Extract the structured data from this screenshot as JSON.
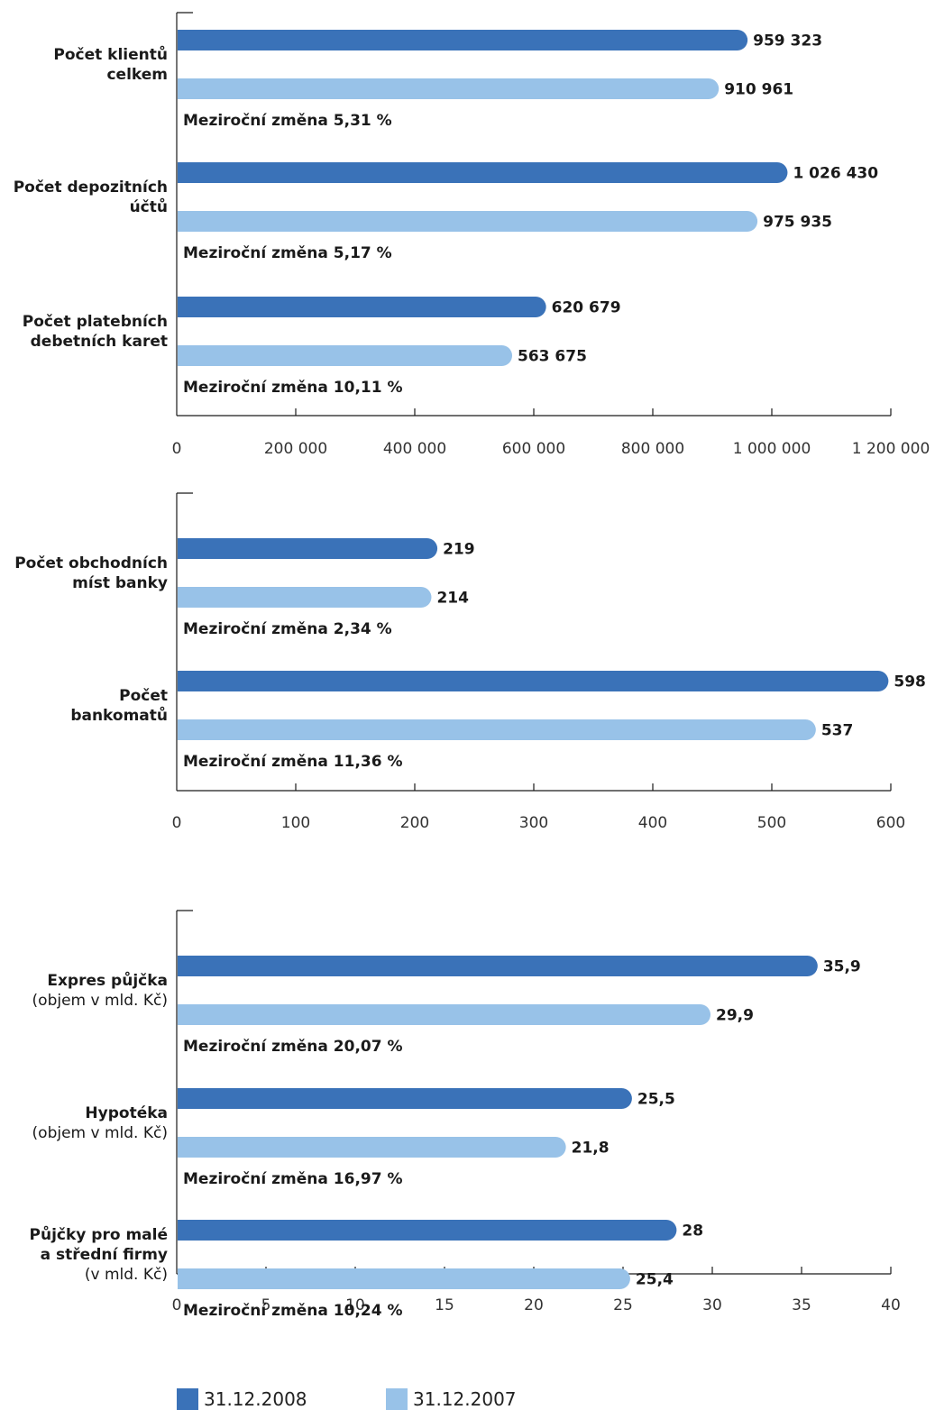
{
  "colors": {
    "series_2008": "#3a72b8",
    "series_2007": "#98c2e8",
    "axis": "#1a1a1a"
  },
  "legend": [
    {
      "label": "31.12.2008",
      "color": "#3a72b8"
    },
    {
      "label": "31.12.2007",
      "color": "#98c2e8"
    }
  ],
  "chart_data": [
    {
      "type": "bar",
      "orientation": "horizontal",
      "xlim": [
        0,
        1200000
      ],
      "ticks": [
        "0",
        "200 000",
        "400 000",
        "600 000",
        "800 000",
        "1 000 000",
        "1 200 000"
      ],
      "tick_values": [
        0,
        200000,
        400000,
        600000,
        800000,
        1000000,
        1200000
      ],
      "groups": [
        {
          "label_lines": [
            "Počet klientů",
            "celkem"
          ],
          "sub_lines": [],
          "v2008": 959323,
          "v2008_label": "959 323",
          "v2007": 910961,
          "v2007_label": "910 961",
          "change": "Meziroční změna 5,31 %"
        },
        {
          "label_lines": [
            "Počet depozitních",
            "účtů"
          ],
          "sub_lines": [],
          "v2008": 1026430,
          "v2008_label": "1 026 430",
          "v2007": 975935,
          "v2007_label": "975 935",
          "change": "Meziroční změna 5,17 %"
        },
        {
          "label_lines": [
            "Počet platebních",
            "debetních karet"
          ],
          "sub_lines": [],
          "v2008": 620679,
          "v2008_label": "620 679",
          "v2007": 563675,
          "v2007_label": "563 675",
          "change": "Meziroční změna 10,11 %"
        }
      ]
    },
    {
      "type": "bar",
      "orientation": "horizontal",
      "xlim": [
        0,
        600
      ],
      "ticks": [
        "0",
        "100",
        "200",
        "300",
        "400",
        "500",
        "600"
      ],
      "tick_values": [
        0,
        100,
        200,
        300,
        400,
        500,
        600
      ],
      "groups": [
        {
          "label_lines": [
            "Počet obchodních",
            "míst banky"
          ],
          "sub_lines": [],
          "v2008": 219,
          "v2008_label": "219",
          "v2007": 214,
          "v2007_label": "214",
          "change": "Meziroční změna 2,34 %"
        },
        {
          "label_lines": [
            "Počet",
            "bankomatů"
          ],
          "sub_lines": [],
          "v2008": 598,
          "v2008_label": "598",
          "v2007": 537,
          "v2007_label": "537",
          "change": "Meziroční změna 11,36 %"
        }
      ]
    },
    {
      "type": "bar",
      "orientation": "horizontal",
      "xlim": [
        0,
        40
      ],
      "ticks": [
        "0",
        "5",
        "10",
        "15",
        "20",
        "25",
        "30",
        "35",
        "40"
      ],
      "tick_values": [
        0,
        5,
        10,
        15,
        20,
        25,
        30,
        35,
        40
      ],
      "groups": [
        {
          "label_lines": [
            "Expres půjčka"
          ],
          "sub_lines": [
            "(objem v mld. Kč)"
          ],
          "v2008": 35.9,
          "v2008_label": "35,9",
          "v2007": 29.9,
          "v2007_label": "29,9",
          "change": "Meziroční změna 20,07 %"
        },
        {
          "label_lines": [
            "Hypotéka"
          ],
          "sub_lines": [
            "(objem v mld. Kč)"
          ],
          "v2008": 25.5,
          "v2008_label": "25,5",
          "v2007": 21.8,
          "v2007_label": "21,8",
          "change": "Meziroční změna 16,97 %"
        },
        {
          "label_lines": [
            "Půjčky pro malé",
            "a střední firmy"
          ],
          "sub_lines": [
            "(v mld. Kč)"
          ],
          "v2008": 28,
          "v2008_label": "28",
          "v2007": 25.4,
          "v2007_label": "25,4",
          "change": "Meziroční změna 10,24 %"
        }
      ]
    }
  ]
}
